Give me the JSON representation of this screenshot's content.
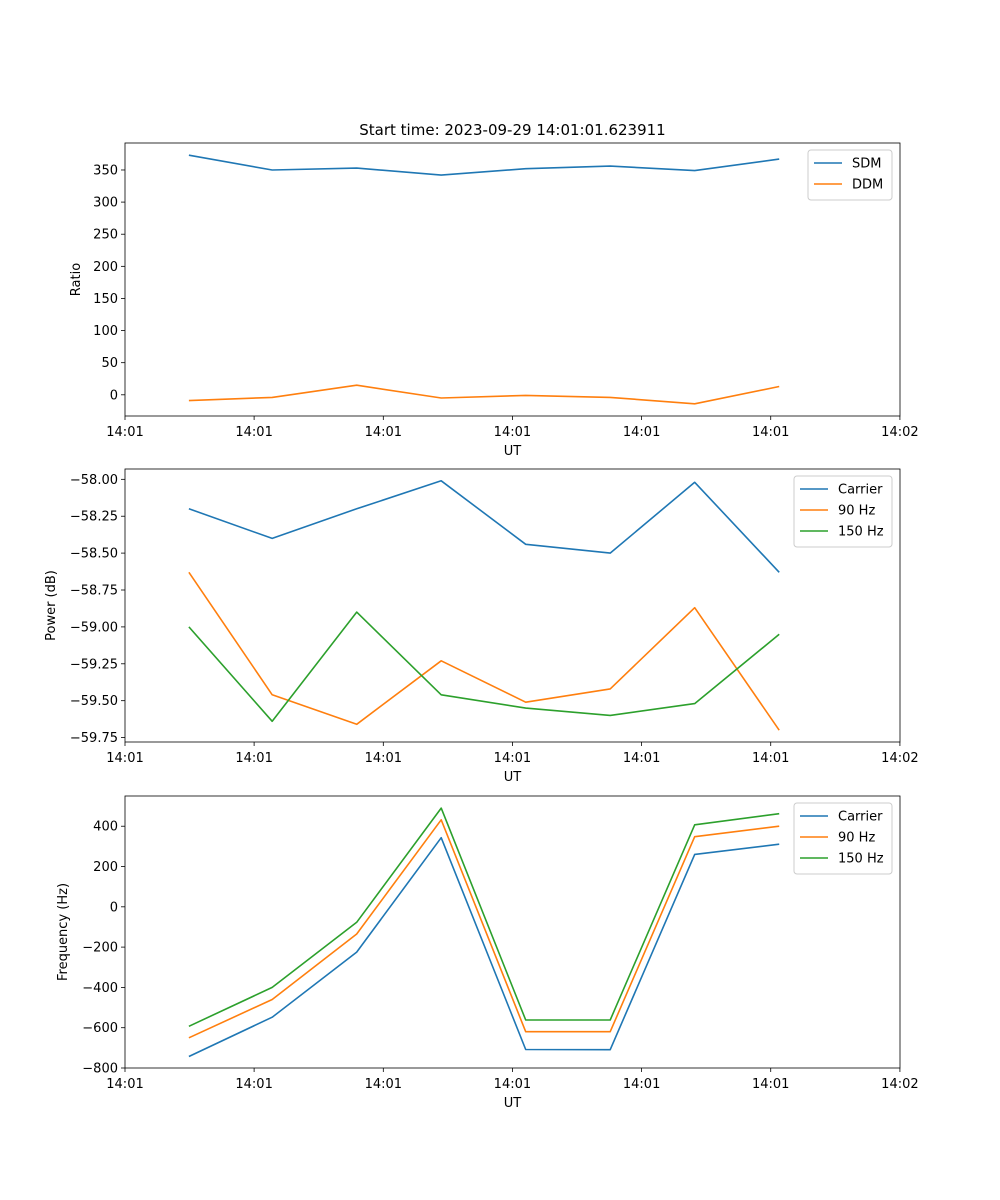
{
  "chart_data": [
    {
      "type": "line",
      "title": "Start time: 2023-09-29 14:01:01.623911",
      "xlabel": "UT",
      "ylabel": "Ratio",
      "xlim": [
        0,
        9.4
      ],
      "ylim": [
        -33,
        392
      ],
      "x_ticks": [
        0.0,
        1.566,
        3.133,
        4.699,
        6.266,
        7.832,
        9.399
      ],
      "x_tick_labels": [
        "14:01",
        "14:01",
        "14:01",
        "14:01",
        "14:01",
        "14:01",
        "14:02"
      ],
      "y_ticks": [
        0,
        50,
        100,
        150,
        200,
        250,
        300,
        350
      ],
      "y_tick_labels": [
        "0",
        "50",
        "100",
        "150",
        "200",
        "250",
        "300",
        "350"
      ],
      "x": [
        0.775,
        1.785,
        2.81,
        3.835,
        4.86,
        5.885,
        6.91,
        7.935
      ],
      "legend": "top-right",
      "series": [
        {
          "name": "SDM",
          "color": "#1f77b4",
          "values": [
            373,
            350,
            353,
            342,
            352,
            356,
            349,
            367
          ]
        },
        {
          "name": "DDM",
          "color": "#ff7f0e",
          "values": [
            -9,
            -4,
            15,
            -5,
            -1,
            -4,
            -14,
            13
          ]
        }
      ]
    },
    {
      "type": "line",
      "title": "",
      "xlabel": "UT",
      "ylabel": "Power (dB)",
      "xlim": [
        0,
        9.4
      ],
      "ylim": [
        -59.78,
        -57.93
      ],
      "x_ticks": [
        0.0,
        1.566,
        3.133,
        4.699,
        6.266,
        7.832,
        9.399
      ],
      "x_tick_labels": [
        "14:01",
        "14:01",
        "14:01",
        "14:01",
        "14:01",
        "14:01",
        "14:02"
      ],
      "y_ticks": [
        -59.75,
        -59.5,
        -59.25,
        -59.0,
        -58.75,
        -58.5,
        -58.25,
        -58.0
      ],
      "y_tick_labels": [
        "−59.75",
        "−59.50",
        "−59.25",
        "−59.00",
        "−58.75",
        "−58.50",
        "−58.25",
        "−58.00"
      ],
      "x": [
        0.775,
        1.785,
        2.81,
        3.835,
        4.86,
        5.885,
        6.91,
        7.935
      ],
      "legend": "top-right",
      "series": [
        {
          "name": "Carrier",
          "color": "#1f77b4",
          "values": [
            -58.2,
            -58.4,
            -58.2,
            -58.01,
            -58.44,
            -58.5,
            -58.02,
            -58.63
          ]
        },
        {
          "name": "90 Hz",
          "color": "#ff7f0e",
          "values": [
            -58.63,
            -59.46,
            -59.66,
            -59.23,
            -59.51,
            -59.42,
            -58.87,
            -59.7
          ]
        },
        {
          "name": "150 Hz",
          "color": "#2ca02c",
          "values": [
            -59.0,
            -59.64,
            -58.9,
            -59.46,
            -59.55,
            -59.6,
            -59.52,
            -59.05
          ]
        }
      ]
    },
    {
      "type": "line",
      "title": "",
      "xlabel": "UT",
      "ylabel": "Frequency (Hz)",
      "xlim": [
        0,
        9.4
      ],
      "ylim": [
        -800,
        550
      ],
      "x_ticks": [
        0.0,
        1.566,
        3.133,
        4.699,
        6.266,
        7.832,
        9.399
      ],
      "x_tick_labels": [
        "14:01",
        "14:01",
        "14:01",
        "14:01",
        "14:01",
        "14:01",
        "14:02"
      ],
      "y_ticks": [
        -800,
        -600,
        -400,
        -200,
        0,
        200,
        400
      ],
      "y_tick_labels": [
        "−800",
        "−600",
        "−400",
        "−200",
        "0",
        "200",
        "400"
      ],
      "x": [
        0.775,
        1.785,
        2.81,
        3.835,
        4.86,
        5.885,
        6.91,
        7.935
      ],
      "legend": "top-right",
      "series": [
        {
          "name": "Carrier",
          "color": "#1f77b4",
          "values": [
            -743,
            -548,
            -225,
            343,
            -708,
            -709,
            260,
            311
          ]
        },
        {
          "name": "90 Hz",
          "color": "#ff7f0e",
          "values": [
            -650,
            -460,
            -135,
            432,
            -620,
            -620,
            348,
            400
          ]
        },
        {
          "name": "150 Hz",
          "color": "#2ca02c",
          "values": [
            -593,
            -400,
            -77,
            490,
            -562,
            -562,
            407,
            462
          ]
        }
      ]
    }
  ]
}
